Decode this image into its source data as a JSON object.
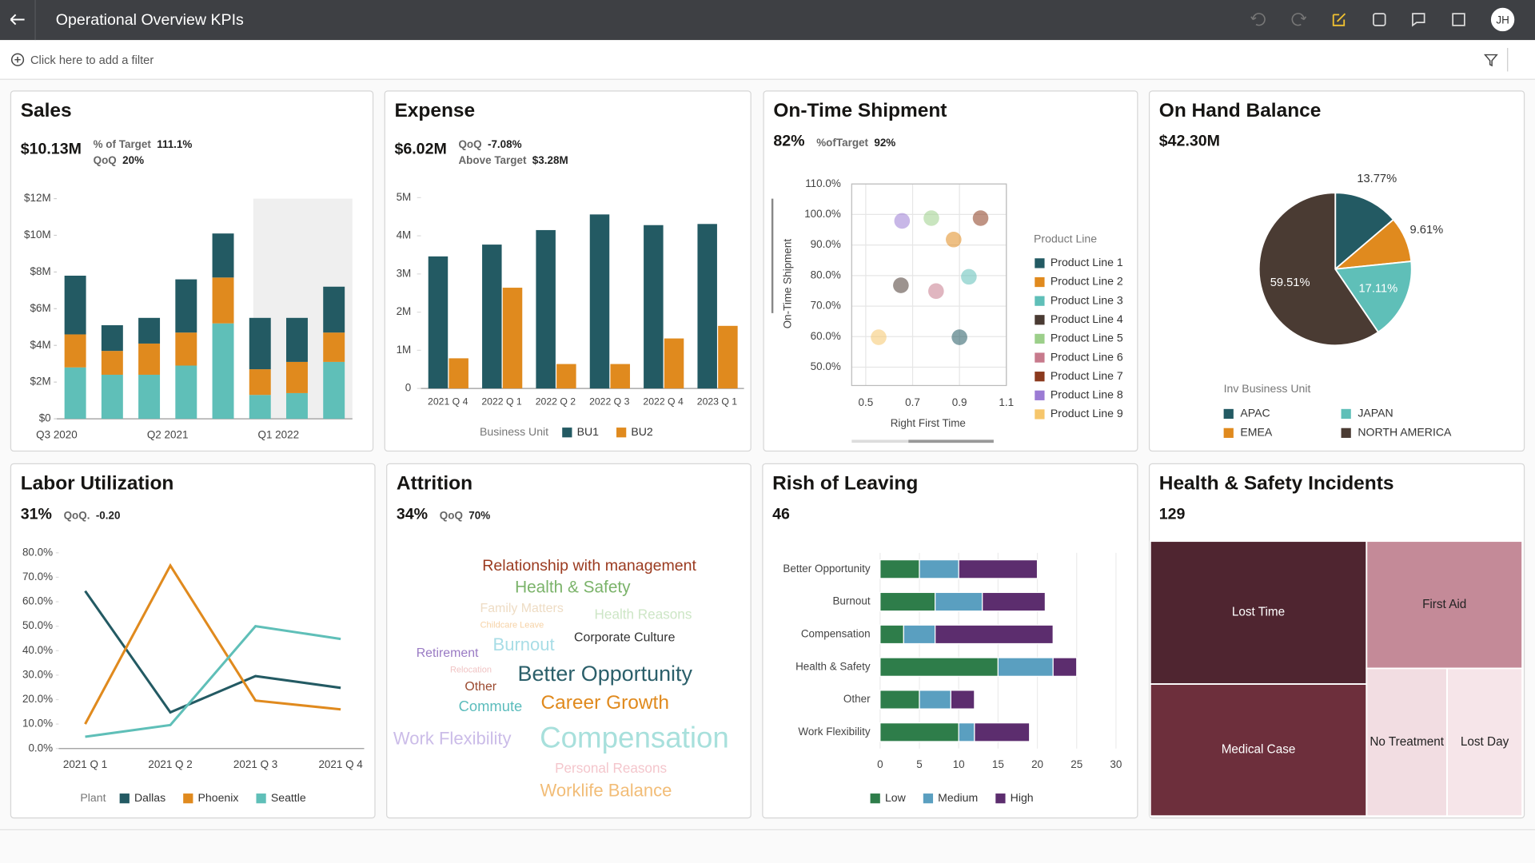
{
  "header": {
    "title": "Operational Overview KPIs",
    "user_initials": "JH",
    "filter_prompt": "Click here to add a filter"
  },
  "chart_data": [
    {
      "type": "stacked_bar",
      "title": "Sales",
      "kpi": {
        "value": "$10.13M",
        "details": [
          {
            "label": "% of Target",
            "value": "111.1%"
          },
          {
            "label": "QoQ",
            "value": "20%"
          }
        ]
      },
      "categories": [
        "Q3 2020",
        null,
        null,
        "Q2 2021",
        null,
        null,
        "Q1 2022",
        null
      ],
      "series": [
        {
          "color": "#5fbfb8",
          "values": [
            2.8,
            2.4,
            2.4,
            2.9,
            5.2,
            1.3,
            1.4,
            3.1
          ]
        },
        {
          "color": "#e08a1e",
          "values": [
            1.8,
            1.3,
            1.7,
            1.8,
            2.5,
            1.4,
            1.7,
            1.6
          ]
        },
        {
          "color": "#235a63",
          "values": [
            3.2,
            1.4,
            1.4,
            2.9,
            2.4,
            2.8,
            2.4,
            2.5
          ]
        }
      ],
      "ylim": [
        0,
        12
      ],
      "yticks": [
        {
          "value": 0,
          "label": "$0"
        },
        {
          "value": 2,
          "label": "$2M"
        },
        {
          "value": 4,
          "label": "$4M"
        },
        {
          "value": 6,
          "label": "$6M"
        },
        {
          "value": 8,
          "label": "$8M"
        },
        {
          "value": 10,
          "label": "$10M"
        },
        {
          "value": 12,
          "label": "$12M"
        }
      ]
    },
    {
      "type": "grouped_bar",
      "title": "Expense",
      "kpi": {
        "value": "$6.02M",
        "details": [
          {
            "label": "QoQ",
            "value": "-7.08%"
          },
          {
            "label": "Above Target",
            "value": "$3.28M"
          }
        ]
      },
      "categories": [
        "2021 Q 4",
        "2022 Q 1",
        "2022 Q 2",
        "2022 Q 3",
        "2022 Q 4",
        "2023 Q 1"
      ],
      "legend_title": "Business Unit",
      "series": [
        {
          "name": "BU1",
          "color": "#235a63",
          "values": [
            3.46,
            3.77,
            4.15,
            4.56,
            4.28,
            4.31
          ]
        },
        {
          "name": "BU2",
          "color": "#e08a1e",
          "values": [
            0.79,
            2.64,
            0.64,
            0.64,
            1.31,
            1.64
          ]
        }
      ],
      "ylim": [
        0,
        5
      ],
      "yticks": [
        0,
        {
          "value": 1,
          "label": "1M"
        },
        {
          "value": 2,
          "label": "2M"
        },
        {
          "value": 3,
          "label": "3M"
        },
        {
          "value": 4,
          "label": "4M"
        },
        {
          "value": 5,
          "label": "5M"
        }
      ]
    },
    {
      "type": "scatter",
      "title": "On-Time Shipment",
      "kpi": {
        "value": "82%",
        "details": [
          {
            "label": "%ofTarget",
            "value": "92%"
          }
        ]
      },
      "x_label": "Right First Time",
      "y_label": "On-Time Shipment",
      "legend_title": "Product Line",
      "series": [
        {
          "name": "Product Line 1",
          "color": "#235a63",
          "x": [
            0.9
          ],
          "values": [
            59.8
          ]
        },
        {
          "name": "Product Line 2",
          "color": "#e08a1e",
          "x": [
            0.875
          ],
          "values": [
            91.8
          ]
        },
        {
          "name": "Product Line 3",
          "color": "#5fbfb8",
          "x": [
            0.94
          ],
          "values": [
            79.6
          ]
        },
        {
          "name": "Product Line 4",
          "color": "#4a3b33",
          "x": [
            0.65
          ],
          "values": [
            76.8
          ]
        },
        {
          "name": "Product Line 5",
          "color": "#9ccf8a",
          "x": [
            0.78
          ],
          "values": [
            98.8
          ]
        },
        {
          "name": "Product Line 6",
          "color": "#c77a8c",
          "x": [
            0.8
          ],
          "values": [
            74.9
          ]
        },
        {
          "name": "Product Line 7",
          "color": "#8b3a1e",
          "x": [
            0.99
          ],
          "values": [
            98.8
          ]
        },
        {
          "name": "Product Line 8",
          "color": "#9b7bd4",
          "x": [
            0.655
          ],
          "values": [
            97.9
          ]
        },
        {
          "name": "Product Line 9",
          "color": "#f6c66b",
          "x": [
            0.555
          ],
          "values": [
            59.8
          ]
        }
      ],
      "xlim": [
        0.44,
        1.1
      ],
      "xticks": [
        0.5,
        0.7,
        0.9,
        1.1
      ],
      "ylim": [
        44,
        110
      ],
      "yticks": [
        {
          "value": 50,
          "label": "50.0%"
        },
        {
          "value": 60,
          "label": "60.0%"
        },
        {
          "value": 70,
          "label": "70.0%"
        },
        {
          "value": 80,
          "label": "80.0%"
        },
        {
          "value": 90,
          "label": "90.0%"
        },
        {
          "value": 100,
          "label": "100.0%"
        },
        {
          "value": 110,
          "label": "110.0%"
        }
      ],
      "grid": true
    },
    {
      "type": "pie",
      "title": "On Hand Balance",
      "kpi": {
        "value": "$42.30M",
        "details": []
      },
      "legend_title": "Inv Business Unit",
      "categories": [
        "APAC",
        "EMEA",
        "JAPAN",
        "NORTH AMERICA"
      ],
      "values": [
        13.77,
        9.61,
        17.11,
        59.51
      ],
      "value_labels": [
        "13.77%",
        "9.61%",
        "17.11%",
        "59.51%"
      ],
      "colors": [
        "#235a63",
        "#e08a1e",
        "#5fbfb8",
        "#4a3b33"
      ]
    },
    {
      "type": "line",
      "title": "Labor Utilization",
      "kpi": {
        "value": "31%",
        "details": [
          {
            "label": "QoQ.",
            "value": "-0.20"
          }
        ]
      },
      "categories": [
        "2021 Q 1",
        "2021 Q 2",
        "2021 Q 3",
        "2021 Q 4"
      ],
      "legend_title": "Plant",
      "series": [
        {
          "name": "Dallas",
          "color": "#235a63",
          "values": [
            64.4,
            14.8,
            29.6,
            24.8
          ]
        },
        {
          "name": "Phoenix",
          "color": "#e08a1e",
          "values": [
            10,
            74.8,
            19.6,
            16
          ]
        },
        {
          "name": "Seattle",
          "color": "#5fbfb8",
          "values": [
            4.8,
            9.6,
            50,
            44.8
          ]
        }
      ],
      "ylim": [
        0,
        80
      ],
      "yticks": [
        {
          "value": 0,
          "label": "0.0%"
        },
        {
          "value": 10,
          "label": "10.0%"
        },
        {
          "value": 20,
          "label": "20.0%"
        },
        {
          "value": 30,
          "label": "30.0%"
        },
        {
          "value": 40,
          "label": "40.0%"
        },
        {
          "value": 50,
          "label": "50.0%"
        },
        {
          "value": 60,
          "label": "60.0%"
        },
        {
          "value": 70,
          "label": "70.0%"
        },
        {
          "value": 80,
          "label": "80.0%"
        }
      ]
    },
    {
      "type": "wordcloud",
      "title": "Attrition",
      "kpi": {
        "value": "34%",
        "details": [
          {
            "label": "QoQ",
            "value": "70%"
          }
        ]
      },
      "words": [
        {
          "text": "Relationship with management",
          "weight": 16,
          "color": "#9b3b20"
        },
        {
          "text": "Health & Safety",
          "weight": 17,
          "color": "#7bb36a"
        },
        {
          "text": "Family Matters",
          "weight": 13,
          "color": "#eedcc4"
        },
        {
          "text": "Health Reasons",
          "weight": 14,
          "color": "#cde6c6"
        },
        {
          "text": "Childcare Leave",
          "weight": 9,
          "color": "#f6d2a6"
        },
        {
          "text": "Burnout",
          "weight": 18,
          "color": "#a8dde6"
        },
        {
          "text": "Corporate Culture",
          "weight": 13,
          "color": "#333333"
        },
        {
          "text": "Retirement",
          "weight": 13,
          "color": "#9a7bc4"
        },
        {
          "text": "Relocation",
          "weight": 9,
          "color": "#f0c4c4"
        },
        {
          "text": "Better Opportunity",
          "weight": 22,
          "color": "#2b5f6a"
        },
        {
          "text": "Other",
          "weight": 13,
          "color": "#9b4a30"
        },
        {
          "text": "Commute",
          "weight": 15,
          "color": "#5bbcbc"
        },
        {
          "text": "Career Growth",
          "weight": 20,
          "color": "#e08a1e"
        },
        {
          "text": "Work Flexibility",
          "weight": 18,
          "color": "#cbbce8"
        },
        {
          "text": "Compensation",
          "weight": 30,
          "color": "#a8e0dc"
        },
        {
          "text": "Personal Reasons",
          "weight": 14,
          "color": "#f4c6cc"
        },
        {
          "text": "Worklife Balance",
          "weight": 18,
          "color": "#f2bd78"
        }
      ]
    },
    {
      "type": "stacked_barh",
      "title": "Rish of Leaving",
      "kpi": {
        "value": "46",
        "details": []
      },
      "categories": [
        "Better Opportunity",
        "Burnout",
        "Compensation",
        "Health & Safety",
        "Other",
        "Work Flexibility"
      ],
      "series": [
        {
          "name": "Low",
          "color": "#2e7d4a",
          "values": [
            5,
            7,
            3,
            15,
            5,
            10
          ]
        },
        {
          "name": "Medium",
          "color": "#5a9fc0",
          "values": [
            5,
            6,
            4,
            7,
            4,
            2
          ]
        },
        {
          "name": "High",
          "color": "#5c2d6e",
          "values": [
            10,
            8,
            15,
            3,
            3,
            7
          ]
        }
      ],
      "xlim": [
        0,
        30
      ],
      "xticks": [
        0,
        5,
        10,
        15,
        20,
        25,
        30
      ],
      "grid": true
    },
    {
      "type": "treemap",
      "title": "Health & Safety Incidents",
      "kpi": {
        "value": "129",
        "details": []
      },
      "categories": [
        "Lost Time",
        "Medical Case",
        "First Aid",
        "No Treatment",
        "Lost Day"
      ],
      "values": [
        39,
        36,
        25,
        15,
        14
      ],
      "colors": [
        "#4f2530",
        "#6d2f3c",
        "#c48a98",
        "#f2dde2",
        "#f6e5e9"
      ]
    }
  ]
}
